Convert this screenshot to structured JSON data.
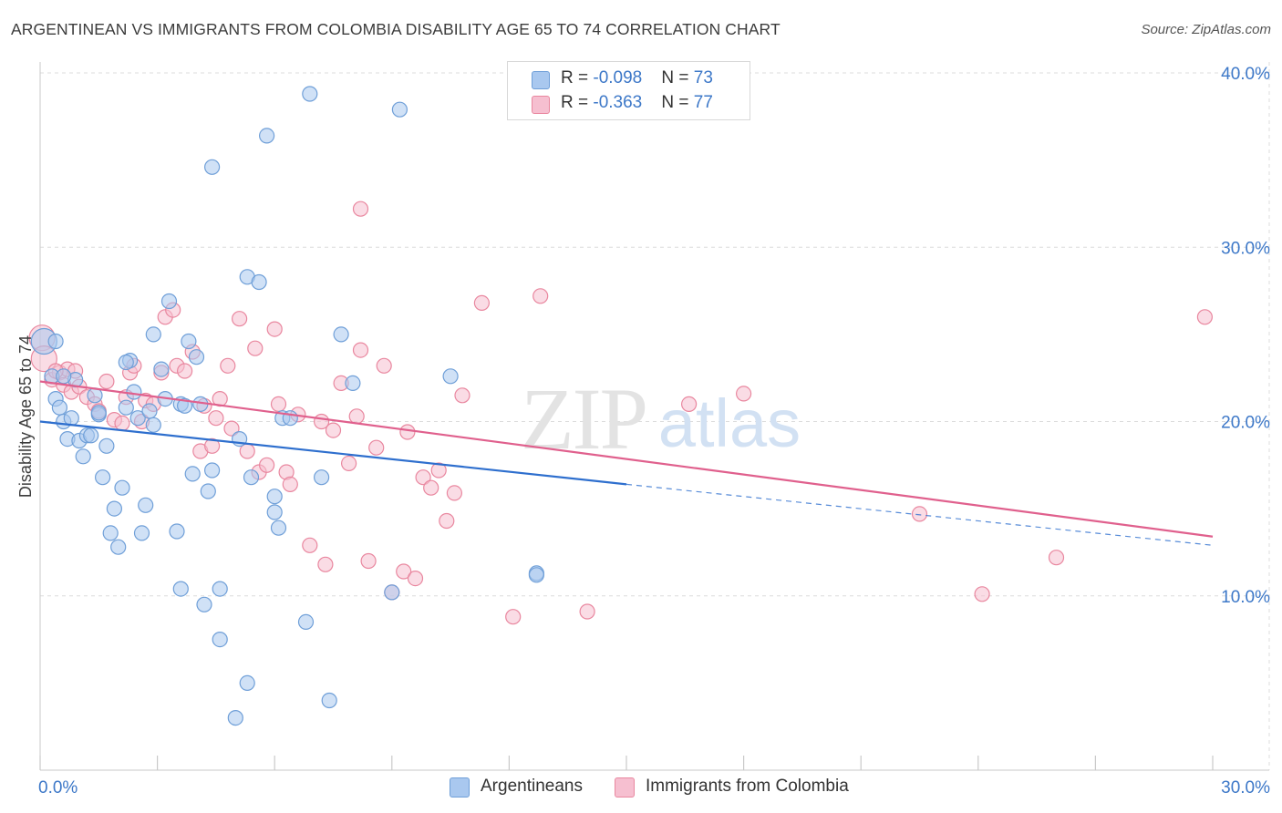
{
  "title": "ARGENTINEAN VS IMMIGRANTS FROM COLOMBIA DISABILITY AGE 65 TO 74 CORRELATION CHART",
  "source": "Source: ZipAtlas.com",
  "watermark": {
    "zip": "ZIP",
    "atlas": "atlas"
  },
  "legend": {
    "series1": {
      "r_label": "R = ",
      "r_value": "-0.098",
      "n_label": "N = ",
      "n_value": "73"
    },
    "series2": {
      "r_label": "R = ",
      "r_value": "-0.363",
      "n_label": "N = ",
      "n_value": "77"
    }
  },
  "bottom_legend": {
    "series1": "Argentineans",
    "series2": "Immigrants from Colombia"
  },
  "colors": {
    "blue_fill": "#a9c8ef",
    "blue_stroke": "#6f9fd8",
    "blue_line": "#2e6fce",
    "pink_fill": "#f6bfd0",
    "pink_stroke": "#e9879f",
    "pink_line": "#e0608d",
    "tick_label": "#3d78c8",
    "grid": "#dcdcdc"
  },
  "chart_data": {
    "type": "scatter",
    "title": "ARGENTINEAN VS IMMIGRANTS FROM COLOMBIA DISABILITY AGE 65 TO 74 CORRELATION CHART",
    "xlabel": "",
    "ylabel": "Disability Age 65 to 74",
    "xlim": [
      0,
      30
    ],
    "ylim": [
      0,
      40
    ],
    "x_tick_labels": [
      "0.0%",
      "30.0%"
    ],
    "y_ticks": [
      10,
      20,
      30,
      40
    ],
    "y_tick_labels": [
      "10.0%",
      "20.0%",
      "30.0%",
      "40.0%"
    ],
    "grid": true,
    "legend_position": "top-center",
    "series": [
      {
        "name": "Argentineans",
        "color": "#a9c8ef",
        "R": -0.098,
        "N": 73,
        "trend": {
          "x": [
            0,
            15
          ],
          "y": [
            20.0,
            16.4
          ],
          "dashed_extension_to_x": 30,
          "dashed_end_y": 12.9
        },
        "points": [
          [
            0.1,
            24.6
          ],
          [
            0.3,
            22.6
          ],
          [
            0.4,
            21.3
          ],
          [
            0.5,
            20.8
          ],
          [
            0.6,
            20.0
          ],
          [
            0.7,
            19.0
          ],
          [
            0.8,
            20.2
          ],
          [
            0.9,
            22.4
          ],
          [
            1.0,
            18.9
          ],
          [
            1.1,
            18.0
          ],
          [
            1.2,
            19.2
          ],
          [
            1.3,
            19.2
          ],
          [
            1.4,
            21.5
          ],
          [
            1.5,
            20.4
          ],
          [
            1.6,
            16.8
          ],
          [
            1.7,
            18.6
          ],
          [
            1.8,
            13.6
          ],
          [
            1.9,
            15.0
          ],
          [
            2.0,
            12.8
          ],
          [
            2.1,
            16.2
          ],
          [
            2.2,
            20.8
          ],
          [
            2.3,
            23.5
          ],
          [
            2.4,
            21.7
          ],
          [
            2.5,
            20.2
          ],
          [
            2.6,
            13.6
          ],
          [
            2.7,
            15.2
          ],
          [
            2.8,
            20.6
          ],
          [
            2.9,
            19.8
          ],
          [
            2.9,
            25.0
          ],
          [
            3.1,
            23.0
          ],
          [
            3.2,
            21.3
          ],
          [
            3.3,
            26.9
          ],
          [
            3.5,
            13.7
          ],
          [
            3.6,
            21.0
          ],
          [
            3.7,
            20.9
          ],
          [
            3.8,
            24.6
          ],
          [
            3.9,
            17.0
          ],
          [
            4.0,
            23.7
          ],
          [
            4.1,
            21.0
          ],
          [
            4.2,
            9.5
          ],
          [
            4.3,
            16.0
          ],
          [
            4.4,
            34.6
          ],
          [
            4.4,
            17.2
          ],
          [
            4.6,
            10.4
          ],
          [
            4.6,
            7.5
          ],
          [
            5.0,
            3.0
          ],
          [
            5.1,
            19.0
          ],
          [
            5.3,
            5.0
          ],
          [
            5.3,
            28.3
          ],
          [
            5.4,
            16.8
          ],
          [
            5.6,
            28.0
          ],
          [
            5.8,
            36.4
          ],
          [
            6.0,
            15.7
          ],
          [
            6.0,
            14.8
          ],
          [
            6.1,
            13.9
          ],
          [
            6.2,
            20.2
          ],
          [
            6.4,
            20.2
          ],
          [
            6.8,
            8.5
          ],
          [
            6.9,
            38.8
          ],
          [
            7.2,
            16.8
          ],
          [
            7.4,
            4.0
          ],
          [
            7.7,
            25.0
          ],
          [
            8.0,
            22.2
          ],
          [
            9.0,
            10.2
          ],
          [
            9.2,
            37.9
          ],
          [
            10.5,
            22.6
          ],
          [
            12.7,
            11.3
          ],
          [
            12.7,
            11.2
          ],
          [
            3.6,
            10.4
          ],
          [
            2.2,
            23.4
          ],
          [
            1.5,
            20.5
          ],
          [
            0.4,
            24.6
          ],
          [
            0.6,
            22.6
          ]
        ]
      },
      {
        "name": "Immigrants from Colombia",
        "color": "#f6bfd0",
        "R": -0.363,
        "N": 77,
        "trend": {
          "x": [
            0,
            30
          ],
          "y": [
            22.3,
            13.4
          ]
        },
        "points": [
          [
            0.05,
            24.8
          ],
          [
            0.1,
            23.6
          ],
          [
            0.3,
            22.4
          ],
          [
            0.5,
            22.8
          ],
          [
            0.6,
            22.1
          ],
          [
            0.7,
            23.0
          ],
          [
            0.8,
            21.7
          ],
          [
            0.9,
            22.9
          ],
          [
            1.0,
            22.0
          ],
          [
            1.2,
            21.4
          ],
          [
            1.4,
            21.0
          ],
          [
            1.5,
            20.6
          ],
          [
            1.7,
            22.3
          ],
          [
            1.9,
            20.1
          ],
          [
            2.1,
            19.9
          ],
          [
            2.3,
            22.8
          ],
          [
            2.4,
            23.2
          ],
          [
            2.6,
            20.0
          ],
          [
            2.7,
            21.2
          ],
          [
            2.9,
            21.0
          ],
          [
            3.1,
            22.8
          ],
          [
            3.2,
            26.0
          ],
          [
            3.4,
            26.4
          ],
          [
            3.5,
            23.2
          ],
          [
            3.7,
            22.9
          ],
          [
            3.9,
            24.0
          ],
          [
            4.1,
            18.3
          ],
          [
            4.2,
            20.9
          ],
          [
            4.4,
            18.6
          ],
          [
            4.5,
            20.2
          ],
          [
            4.6,
            21.3
          ],
          [
            4.8,
            23.2
          ],
          [
            4.9,
            19.6
          ],
          [
            5.1,
            25.9
          ],
          [
            5.3,
            18.3
          ],
          [
            5.5,
            24.2
          ],
          [
            5.6,
            17.1
          ],
          [
            5.8,
            17.5
          ],
          [
            6.0,
            25.3
          ],
          [
            6.1,
            21.0
          ],
          [
            6.3,
            17.1
          ],
          [
            6.4,
            16.4
          ],
          [
            6.6,
            20.4
          ],
          [
            6.9,
            12.9
          ],
          [
            7.2,
            20.0
          ],
          [
            7.3,
            11.8
          ],
          [
            7.5,
            19.5
          ],
          [
            7.7,
            22.2
          ],
          [
            7.9,
            17.6
          ],
          [
            8.1,
            20.3
          ],
          [
            8.2,
            24.1
          ],
          [
            8.4,
            12.0
          ],
          [
            8.6,
            18.5
          ],
          [
            8.8,
            23.2
          ],
          [
            9.0,
            10.2
          ],
          [
            9.3,
            11.4
          ],
          [
            9.4,
            19.4
          ],
          [
            9.6,
            11.0
          ],
          [
            9.8,
            16.8
          ],
          [
            10.0,
            16.2
          ],
          [
            10.2,
            17.2
          ],
          [
            10.4,
            14.3
          ],
          [
            10.6,
            15.9
          ],
          [
            10.8,
            21.5
          ],
          [
            11.3,
            26.8
          ],
          [
            12.1,
            8.8
          ],
          [
            12.8,
            27.2
          ],
          [
            14.0,
            9.1
          ],
          [
            16.6,
            21.0
          ],
          [
            18.0,
            21.6
          ],
          [
            22.5,
            14.7
          ],
          [
            24.1,
            10.1
          ],
          [
            26.0,
            12.2
          ],
          [
            29.8,
            26.0
          ],
          [
            8.2,
            32.2
          ],
          [
            2.2,
            21.4
          ],
          [
            0.4,
            22.9
          ]
        ]
      }
    ]
  }
}
